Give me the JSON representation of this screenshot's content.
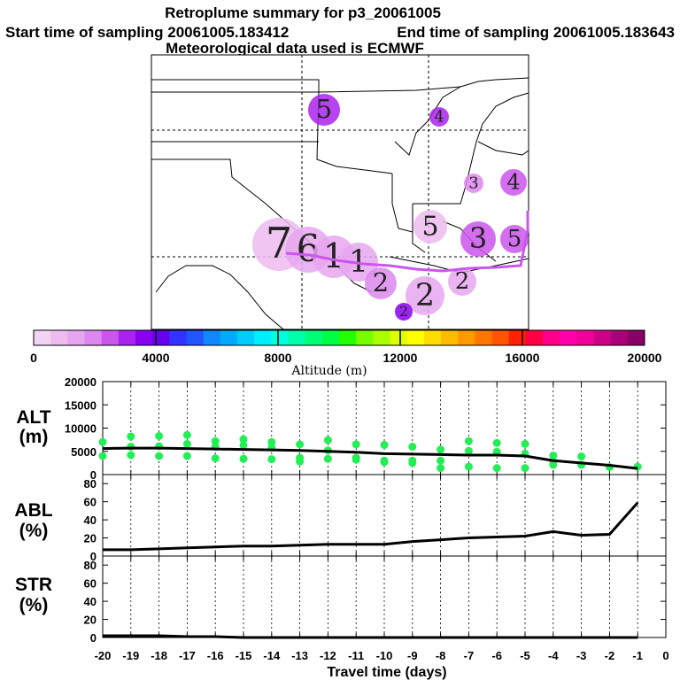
{
  "header": {
    "title": "Retroplume summary for p3_20061005",
    "start": "Start time of sampling 20061005.183412",
    "end": "End time of sampling 20061005.183643",
    "met": "Meteorological data used is ECMWF"
  },
  "colorbar": {
    "labels": [
      "0",
      "4000",
      "8000",
      "12000",
      "16000",
      "20000"
    ],
    "title": "Altitude (m)",
    "colors": [
      "#f4d4f4",
      "#eebbee",
      "#e6a6ee",
      "#dd88ee",
      "#cc55ee",
      "#aa22ee",
      "#8800ee",
      "#6600ee",
      "#3333ff",
      "#2255ff",
      "#1188ff",
      "#00aaff",
      "#00ccff",
      "#00eeff",
      "#00ffdd",
      "#00ffaa",
      "#00ff77",
      "#00ff44",
      "#22ff00",
      "#77ff00",
      "#aaff00",
      "#ddff00",
      "#ffff00",
      "#ffdd00",
      "#ffbb00",
      "#ff9900",
      "#ff7700",
      "#ff5500",
      "#ff2200",
      "#ff0044",
      "#ff0088",
      "#ff00aa",
      "#ee0099",
      "#cc0088",
      "#aa0077",
      "#880066"
    ]
  },
  "map": {
    "labels": [
      {
        "t": "5",
        "c": "#aa22ee"
      },
      {
        "t": "4",
        "c": "#aa22ee"
      },
      {
        "t": "3",
        "c": "#dd88ee"
      },
      {
        "t": "4",
        "c": "#cc55ee"
      },
      {
        "t": "5",
        "c": "#eebbee"
      },
      {
        "t": "7",
        "c": "#eebbee"
      },
      {
        "t": "6",
        "c": "#e6a6ee"
      },
      {
        "t": "1",
        "c": "#e6a6ee"
      },
      {
        "t": "1",
        "c": "#e6a6ee"
      },
      {
        "t": "3",
        "c": "#cc55ee"
      },
      {
        "t": "5",
        "c": "#cc55ee"
      },
      {
        "t": "2",
        "c": "#e6a6ee"
      },
      {
        "t": "2",
        "c": "#e6a6ee"
      },
      {
        "t": "2",
        "c": "#dd88ee"
      },
      {
        "t": "2",
        "c": "#8800ee"
      }
    ]
  },
  "chart_data": [
    {
      "type": "scatter",
      "name": "ALT",
      "ylabel": "ALT (m)",
      "ylim": [
        0,
        20000
      ],
      "yticks": [
        "0",
        "5000",
        "10000",
        "15000",
        "20000"
      ],
      "line": {
        "x": [
          -20,
          -19,
          -18,
          -17,
          -16,
          -15,
          -14,
          -13,
          -12,
          -11,
          -10,
          -9,
          -8,
          -7,
          -6,
          -5,
          -4,
          -3,
          -2,
          -1
        ],
        "y": [
          5600,
          5700,
          5700,
          5600,
          5500,
          5400,
          5300,
          5200,
          5000,
          4800,
          4500,
          4400,
          4300,
          4200,
          4200,
          4000,
          3000,
          2500,
          2000,
          1300
        ]
      },
      "points": [
        {
          "x": -20,
          "y": 7000
        },
        {
          "x": -20,
          "y": 4000
        },
        {
          "x": -19,
          "y": 8200
        },
        {
          "x": -19,
          "y": 6000
        },
        {
          "x": -19,
          "y": 4200
        },
        {
          "x": -18,
          "y": 8300
        },
        {
          "x": -18,
          "y": 6100
        },
        {
          "x": -18,
          "y": 4000
        },
        {
          "x": -17,
          "y": 8500
        },
        {
          "x": -17,
          "y": 6600
        },
        {
          "x": -17,
          "y": 4000
        },
        {
          "x": -16,
          "y": 7200
        },
        {
          "x": -16,
          "y": 6000
        },
        {
          "x": -16,
          "y": 3500
        },
        {
          "x": -15,
          "y": 7600
        },
        {
          "x": -15,
          "y": 6300
        },
        {
          "x": -15,
          "y": 3400
        },
        {
          "x": -14,
          "y": 7000
        },
        {
          "x": -14,
          "y": 5800
        },
        {
          "x": -14,
          "y": 3300
        },
        {
          "x": -13,
          "y": 6500
        },
        {
          "x": -13,
          "y": 3600
        },
        {
          "x": -13,
          "y": 2800
        },
        {
          "x": -12,
          "y": 7400
        },
        {
          "x": -12,
          "y": 5200
        },
        {
          "x": -12,
          "y": 3400
        },
        {
          "x": -11,
          "y": 6500
        },
        {
          "x": -11,
          "y": 3600
        },
        {
          "x": -11,
          "y": 3200
        },
        {
          "x": -10,
          "y": 6400
        },
        {
          "x": -10,
          "y": 3000
        },
        {
          "x": -10,
          "y": 2700
        },
        {
          "x": -9,
          "y": 6000
        },
        {
          "x": -9,
          "y": 3000
        },
        {
          "x": -9,
          "y": 2500
        },
        {
          "x": -8,
          "y": 5400
        },
        {
          "x": -8,
          "y": 3000
        },
        {
          "x": -8,
          "y": 1400
        },
        {
          "x": -7,
          "y": 7200
        },
        {
          "x": -7,
          "y": 5100
        },
        {
          "x": -7,
          "y": 1700
        },
        {
          "x": -6,
          "y": 6800
        },
        {
          "x": -6,
          "y": 4900
        },
        {
          "x": -6,
          "y": 1400
        },
        {
          "x": -5,
          "y": 6600
        },
        {
          "x": -5,
          "y": 4500
        },
        {
          "x": -5,
          "y": 1400
        },
        {
          "x": -4,
          "y": 4100
        },
        {
          "x": -4,
          "y": 2800
        },
        {
          "x": -4,
          "y": 2100
        },
        {
          "x": -3,
          "y": 3900
        },
        {
          "x": -3,
          "y": 2100
        },
        {
          "x": -2,
          "y": 1600
        },
        {
          "x": -1,
          "y": 1700
        }
      ]
    },
    {
      "type": "line",
      "name": "ABL",
      "ylabel": "ABL (%)",
      "ylim": [
        0,
        90
      ],
      "yticks": [
        "0",
        "20",
        "40",
        "60",
        "80"
      ],
      "x": [
        -20,
        -19,
        -18,
        -17,
        -16,
        -15,
        -14,
        -13,
        -12,
        -11,
        -10,
        -9,
        -8,
        -7,
        -6,
        -5,
        -4,
        -3,
        -2,
        -1
      ],
      "y": [
        7,
        7,
        8,
        9,
        10,
        11,
        11,
        12,
        13,
        13,
        13,
        16,
        18,
        20,
        21,
        22,
        27,
        23,
        24,
        59
      ]
    },
    {
      "type": "line",
      "name": "STR",
      "ylabel": "STR (%)",
      "ylim": [
        0,
        90
      ],
      "yticks": [
        "0",
        "20",
        "40",
        "60",
        "80"
      ],
      "x": [
        -20,
        -19,
        -18,
        -17,
        -16,
        -15,
        -14,
        -13,
        -12,
        -11,
        -10,
        -9,
        -8,
        -7,
        -6,
        -5,
        -4,
        -3,
        -2,
        -1
      ],
      "y": [
        2,
        2,
        2,
        1,
        1,
        0,
        0,
        0,
        0,
        0,
        0,
        0,
        0,
        0,
        0,
        0,
        0,
        0,
        0,
        0
      ]
    }
  ],
  "xaxis": {
    "ticks": [
      "-20",
      "-19",
      "-18",
      "-17",
      "-16",
      "-15",
      "-14",
      "-13",
      "-12",
      "-11",
      "-10",
      "-9",
      "-8",
      "-7",
      "-6",
      "-5",
      "-4",
      "-3",
      "-2",
      "-1",
      "0"
    ],
    "title": "Travel time (days)"
  },
  "panel_labels": {
    "alt": [
      "ALT",
      "(m)"
    ],
    "abl": [
      "ABL",
      "(%)"
    ],
    "str": [
      "STR",
      "(%)"
    ]
  },
  "point_color": "#22ee55"
}
